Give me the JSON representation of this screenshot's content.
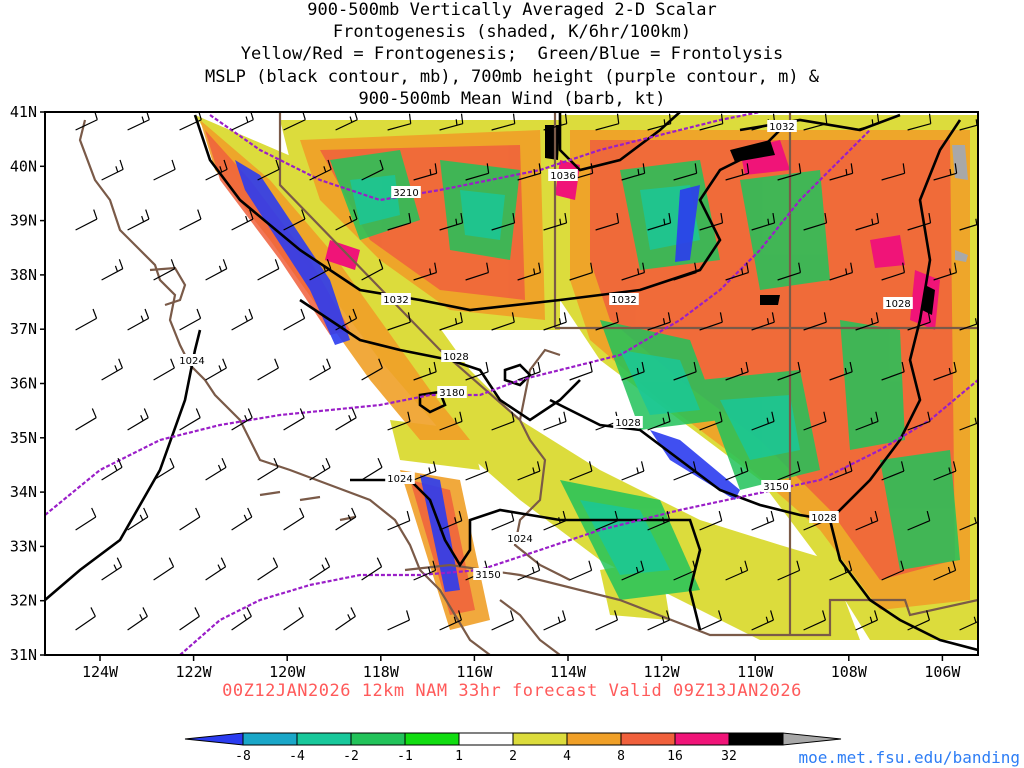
{
  "header": {
    "line1": "900-500mb Vertically Averaged 2-D Scalar",
    "line2": "Frontogenesis (shaded, K/6hr/100km)",
    "line3": "Yellow/Red = Frontogenesis;  Green/Blue = Frontolysis",
    "line4": "MSLP (black contour, mb), 700mb height (purple contour, m) &",
    "line5": "900-500mb Mean Wind (barb, kt)"
  },
  "footer": {
    "run_info": "00Z12JAN2026 12km NAM 33hr forecast Valid 09Z13JAN2026",
    "credit": "moe.met.fsu.edu/banding"
  },
  "axes": {
    "lat_labels": [
      "41N",
      "40N",
      "39N",
      "38N",
      "37N",
      "36N",
      "35N",
      "34N",
      "33N",
      "32N",
      "31N"
    ],
    "lon_labels": [
      "124W",
      "122W",
      "120W",
      "118W",
      "116W",
      "114W",
      "112W",
      "110W",
      "108W",
      "106W"
    ]
  },
  "colorbar": {
    "labels": [
      "-8",
      "-4",
      "-2",
      "-1",
      "1",
      "2",
      "4",
      "8",
      "16",
      "32"
    ],
    "colors": [
      "#2b3cf0",
      "#1aa7c8",
      "#18c89b",
      "#22c35a",
      "#11dd11",
      "#ffffff",
      "#dcdc3c",
      "#f0a028",
      "#f0603c",
      "#f01478",
      "#000000",
      "#a8a8a8"
    ]
  },
  "contour_labels": {
    "mslp": [
      "1032",
      "1036",
      "1032",
      "1032",
      "1028",
      "1028",
      "1028",
      "1024",
      "1024",
      "1024",
      "1028"
    ],
    "height": [
      "3210",
      "3180",
      "3150",
      "3150"
    ]
  },
  "colors": {
    "mslp": "#000000",
    "height": "#9a1ec8",
    "border": "#7a5a48",
    "frame": "#000000"
  }
}
